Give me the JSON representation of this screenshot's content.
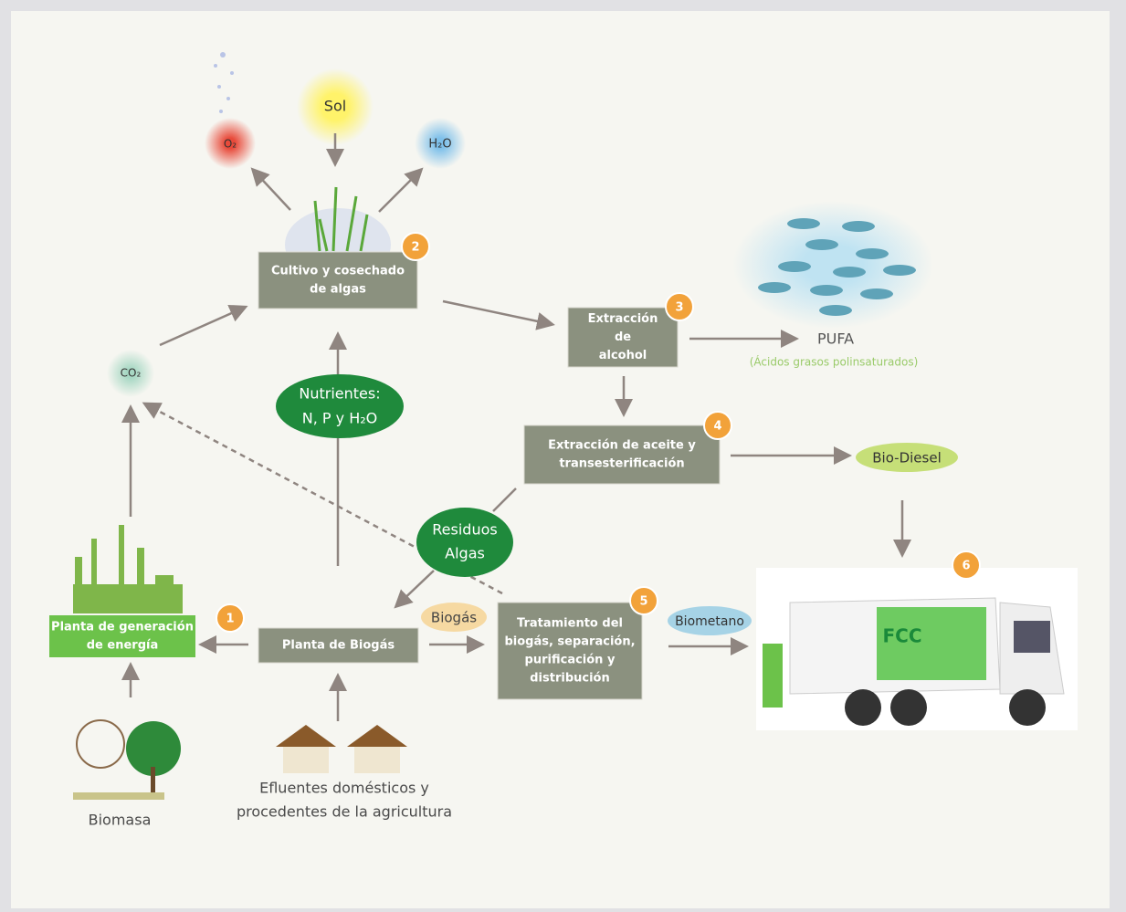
{
  "diagram": {
    "sun": "Sol",
    "oxygen": "O₂",
    "water": "H₂O",
    "co2": "CO₂",
    "nodes": [
      {
        "label": [
          "Cultivo y cosechado",
          "de algas"
        ],
        "step": "2"
      },
      {
        "label": [
          "Extracción",
          "de",
          "alcohol"
        ],
        "step": "3"
      },
      {
        "label": [
          "Extracción de aceite y",
          "transesterificación"
        ],
        "step": "4"
      },
      {
        "label": [
          "Tratamiento del",
          "biogás, separación,",
          "purificación y",
          "distribución"
        ],
        "step": "5"
      },
      {
        "label": [
          "Planta de Biogás"
        ]
      },
      {
        "label": [
          "Planta de generación",
          "de energía"
        ],
        "step": "1"
      }
    ],
    "truck_step": "6",
    "truck_logo": "FCC",
    "nutrients": [
      "Nutrientes:",
      "N, P y H₂O"
    ],
    "residues": [
      "Residuos",
      "Algas"
    ],
    "biogas": "Biogás",
    "biomethane": "Biometano",
    "biodiesel": "Bio-Diesel",
    "pufa": "PUFA",
    "pufa_note": "(Ácidos grasos polinsaturados)",
    "biomass": "Biomasa",
    "effluents": [
      "Efluentes domésticos y",
      "procedentes de la agricultura"
    ]
  }
}
